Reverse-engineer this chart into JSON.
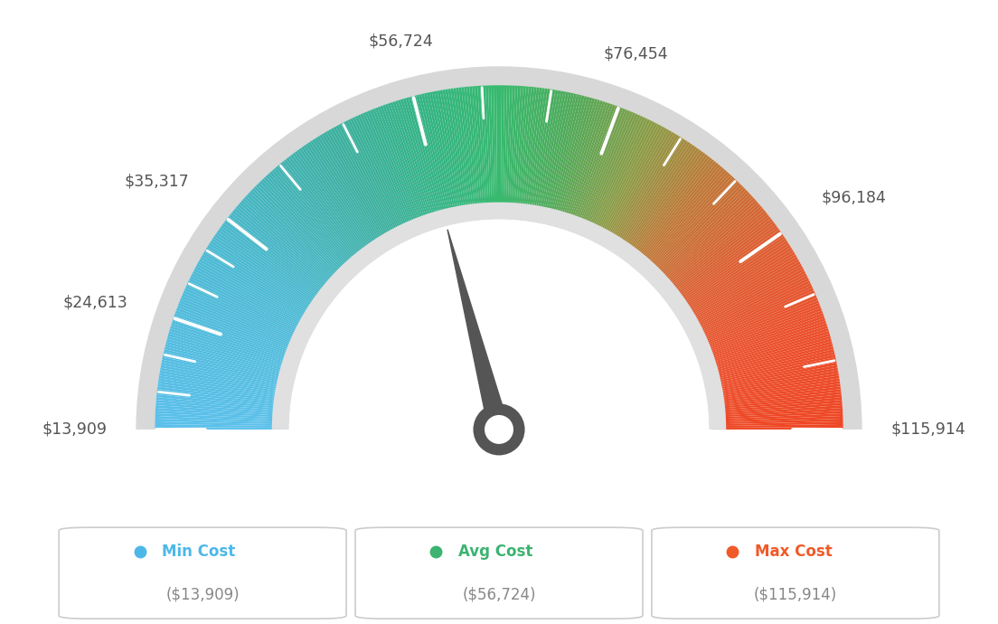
{
  "min_val": 13909,
  "max_val": 115914,
  "avg_val": 56724,
  "needle_value": 56724,
  "tick_values": [
    13909,
    24613,
    35317,
    56724,
    76454,
    96184,
    115914
  ],
  "tick_labels": [
    "$13,909",
    "$24,613",
    "$35,317",
    "$56,724",
    "$76,454",
    "$96,184",
    "$115,914"
  ],
  "color_stops": [
    [
      0.0,
      [
        91,
        192,
        235
      ]
    ],
    [
      0.18,
      [
        75,
        185,
        210
      ]
    ],
    [
      0.33,
      [
        60,
        175,
        160
      ]
    ],
    [
      0.43,
      [
        52,
        180,
        130
      ]
    ],
    [
      0.5,
      [
        55,
        185,
        110
      ]
    ],
    [
      0.57,
      [
        80,
        170,
        90
      ]
    ],
    [
      0.65,
      [
        140,
        155,
        70
      ]
    ],
    [
      0.72,
      [
        190,
        120,
        55
      ]
    ],
    [
      0.8,
      [
        220,
        95,
        50
      ]
    ],
    [
      0.9,
      [
        235,
        80,
        45
      ]
    ],
    [
      1.0,
      [
        238,
        70,
        35
      ]
    ]
  ],
  "outer_r": 1.0,
  "inner_r": 0.62,
  "legend_items": [
    {
      "label": "Min Cost",
      "value": "($13,909)",
      "dot_color": "#4db8e8",
      "text_color": "#4db8e8"
    },
    {
      "label": "Avg Cost",
      "value": "($56,724)",
      "dot_color": "#3cb371",
      "text_color": "#3cb371"
    },
    {
      "label": "Max Cost",
      "value": "($115,914)",
      "dot_color": "#f05a28",
      "text_color": "#f05a28"
    }
  ],
  "bg_color": "#ffffff",
  "label_color": "#555555",
  "needle_color": "#555555",
  "hub_color": "#555555"
}
